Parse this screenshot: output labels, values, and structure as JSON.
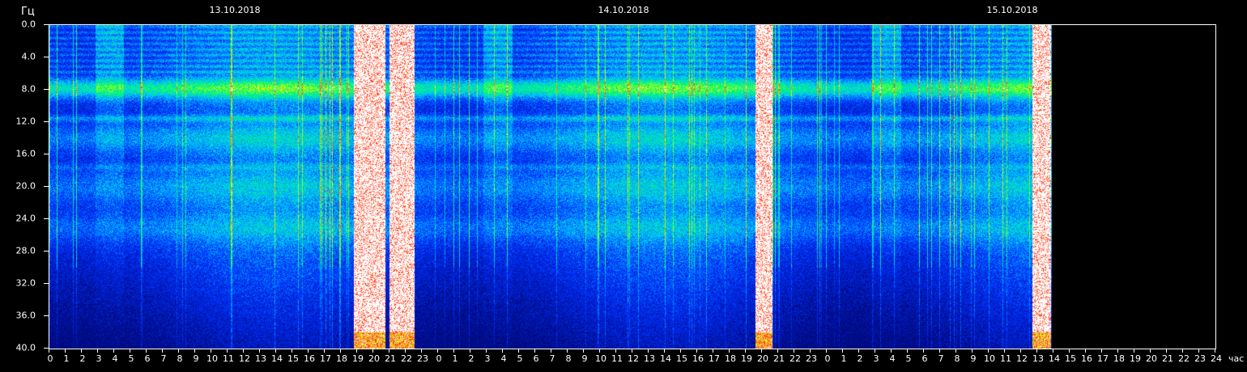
{
  "chart_data": {
    "type": "heatmap",
    "title": "",
    "ylabel": "Гц",
    "xlabel": "час",
    "ylim": [
      0,
      40
    ],
    "y_ticks": [
      "0.0",
      "4.0",
      "8.0",
      "12.0",
      "16.0",
      "20.0",
      "24.0",
      "28.0",
      "32.0",
      "36.0",
      "40.0"
    ],
    "x_ticks": [
      "0",
      "1",
      "2",
      "3",
      "4",
      "5",
      "6",
      "7",
      "8",
      "9",
      "10",
      "11",
      "12",
      "13",
      "14",
      "15",
      "16",
      "17",
      "18",
      "19",
      "20",
      "21",
      "22",
      "23",
      "0",
      "1",
      "2",
      "3",
      "4",
      "5",
      "6",
      "7",
      "8",
      "9",
      "10",
      "11",
      "12",
      "13",
      "14",
      "15",
      "16",
      "17",
      "18",
      "19",
      "20",
      "21",
      "22",
      "23",
      "0",
      "1",
      "2",
      "3",
      "4",
      "5",
      "6",
      "7",
      "8",
      "9",
      "10",
      "11",
      "12",
      "13",
      "14",
      "15",
      "16",
      "17",
      "18",
      "19",
      "20",
      "21",
      "22",
      "23",
      "24"
    ],
    "dates": [
      "13.10.2018",
      "14.10.2018",
      "15.10.2018"
    ],
    "xlim_hours": [
      0,
      72
    ],
    "data_end_hour": 61.9,
    "color_scale": [
      "#000a80",
      "#0030ff",
      "#00c8ff",
      "#00ff60",
      "#ffff00",
      "#ff2000",
      "#ffffff"
    ],
    "bright_bands_hz": [
      7.8,
      11.5,
      14,
      17.5,
      20,
      25
    ],
    "white_bursts_hours": [
      [
        18.8,
        20.7
      ],
      [
        21.0,
        22.5
      ],
      [
        43.6,
        44.6
      ],
      [
        60.7,
        61.8
      ]
    ]
  }
}
